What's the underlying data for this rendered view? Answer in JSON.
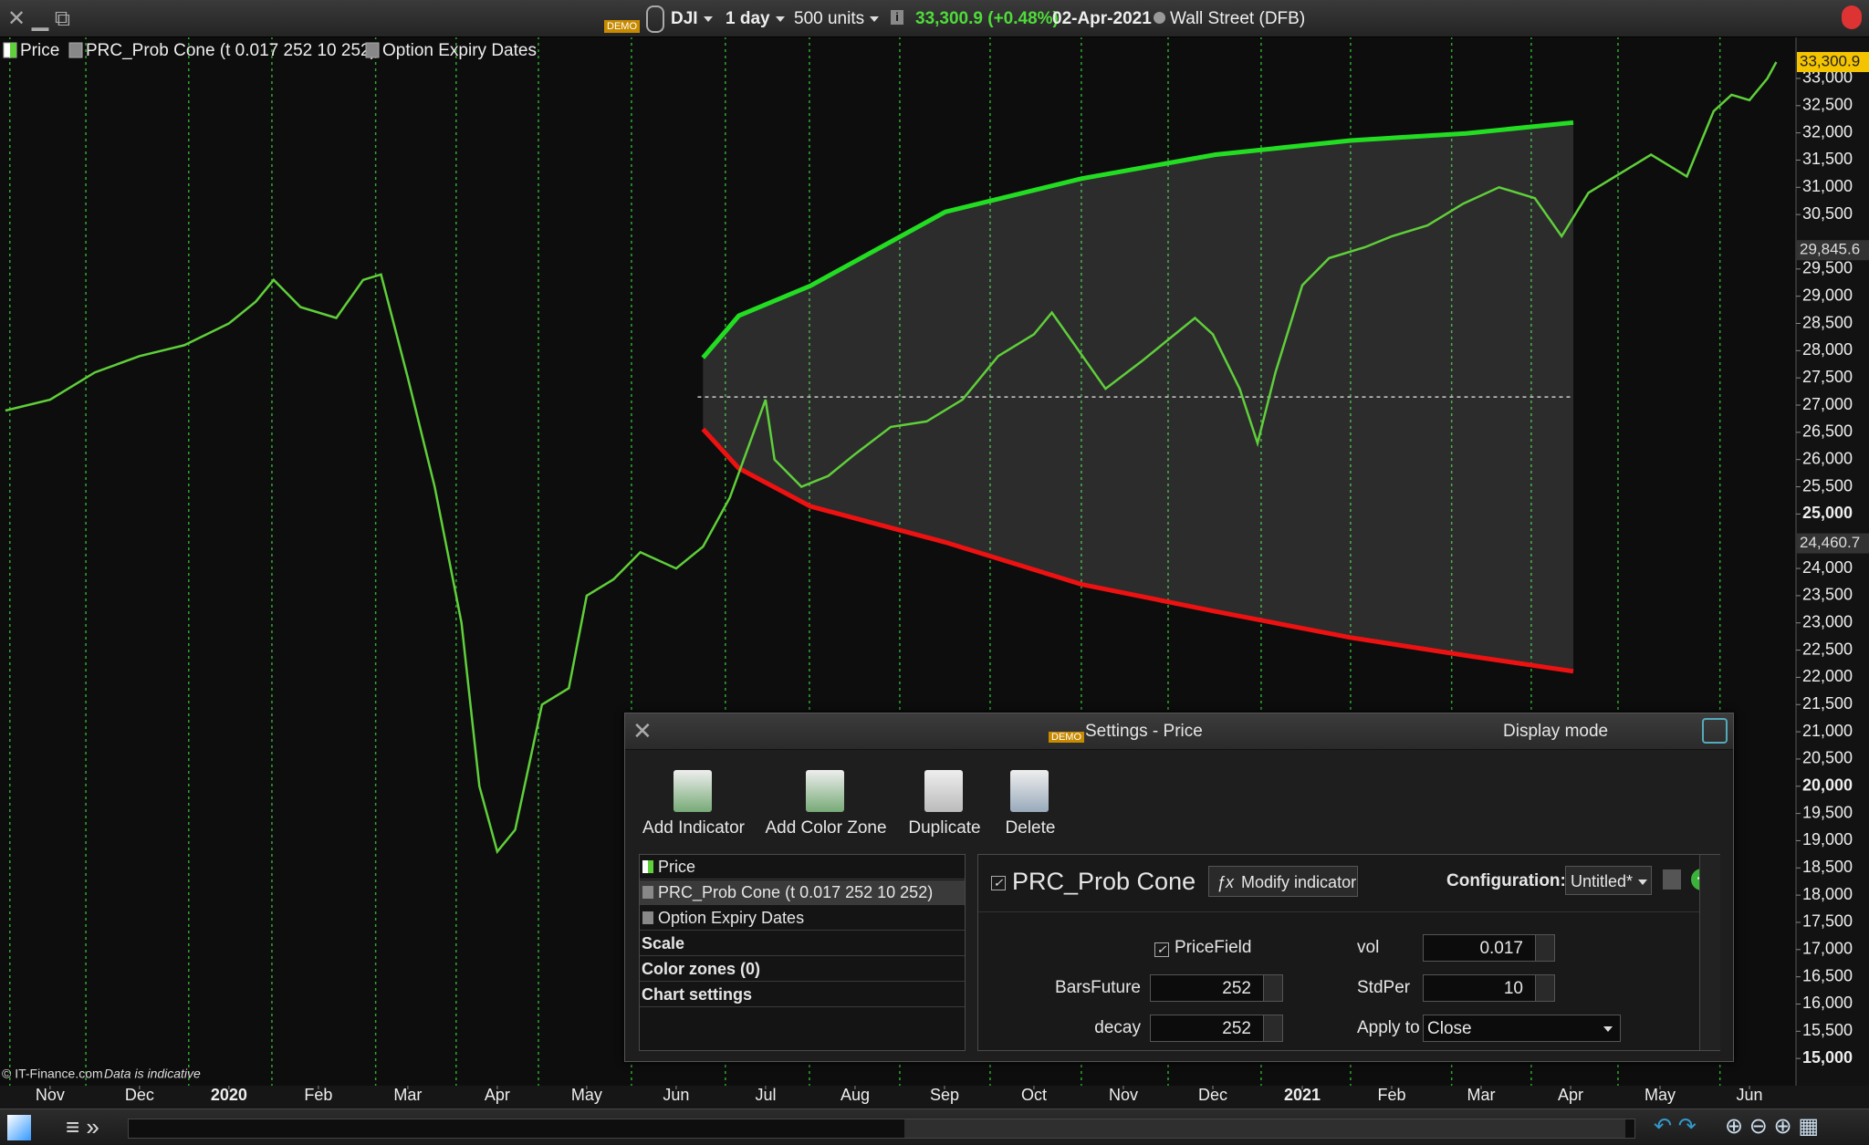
{
  "toolbar": {
    "badge": "DEMO",
    "symbol": "DJI",
    "period": "1 day",
    "units": "500 units",
    "last": "33,300.9",
    "change": "(+0.48%)",
    "date": "02-Apr-2021",
    "market": "Wall Street (DFB)"
  },
  "chart_data": {
    "type": "line",
    "xlim": [
      -0.56,
      19.52
    ],
    "xticks": [
      {
        "value": 0,
        "label": "Nov"
      },
      {
        "value": 1,
        "label": "Dec"
      },
      {
        "value": 2,
        "label": "2020"
      },
      {
        "value": 3,
        "label": "Feb"
      },
      {
        "value": 4,
        "label": "Mar"
      },
      {
        "value": 5,
        "label": "Apr"
      },
      {
        "value": 6,
        "label": "May"
      },
      {
        "value": 7,
        "label": "Jun"
      },
      {
        "value": 8,
        "label": "Jul"
      },
      {
        "value": 9,
        "label": "Aug"
      },
      {
        "value": 10,
        "label": "Sep"
      },
      {
        "value": 11,
        "label": "Oct"
      },
      {
        "value": 12,
        "label": "Nov"
      },
      {
        "value": 13,
        "label": "Dec"
      },
      {
        "value": 14,
        "label": "2021"
      },
      {
        "value": 15,
        "label": "Feb"
      },
      {
        "value": 16,
        "label": "Mar"
      },
      {
        "value": 17,
        "label": "Apr"
      },
      {
        "value": 18,
        "label": "May"
      },
      {
        "value": 19,
        "label": "Jun"
      }
    ],
    "ylim": [
      14500,
      33770
    ],
    "yticks": [
      {
        "value": 15000,
        "label": "15,000"
      },
      {
        "value": 15500,
        "label": "15,500"
      },
      {
        "value": 16000,
        "label": "16,000"
      },
      {
        "value": 16500,
        "label": "16,500"
      },
      {
        "value": 17000,
        "label": "17,000"
      },
      {
        "value": 17500,
        "label": "17,500"
      },
      {
        "value": 18000,
        "label": "18,000"
      },
      {
        "value": 18500,
        "label": "18,500"
      },
      {
        "value": 19000,
        "label": "19,000"
      },
      {
        "value": 19500,
        "label": "19,500"
      },
      {
        "value": 20000,
        "label": "20,000"
      },
      {
        "value": 20500,
        "label": "20,500"
      },
      {
        "value": 21000,
        "label": "21,000"
      },
      {
        "value": 21500,
        "label": "21,500"
      },
      {
        "value": 22000,
        "label": "22,000"
      },
      {
        "value": 22500,
        "label": "22,500"
      },
      {
        "value": 23000,
        "label": "23,000"
      },
      {
        "value": 23500,
        "label": "23,500"
      },
      {
        "value": 24000,
        "label": "24,000"
      },
      {
        "value": 25000,
        "label": "25,000"
      },
      {
        "value": 25500,
        "label": "25,500"
      },
      {
        "value": 26000,
        "label": "26,000"
      },
      {
        "value": 26500,
        "label": "26,500"
      },
      {
        "value": 27000,
        "label": "27,000"
      },
      {
        "value": 27500,
        "label": "27,500"
      },
      {
        "value": 28000,
        "label": "28,000"
      },
      {
        "value": 28500,
        "label": "28,500"
      },
      {
        "value": 29000,
        "label": "29,000"
      },
      {
        "value": 29500,
        "label": "29,500"
      },
      {
        "value": 30500,
        "label": "30,500"
      },
      {
        "value": 31000,
        "label": "31,000"
      },
      {
        "value": 31500,
        "label": "31,500"
      },
      {
        "value": 32000,
        "label": "32,000"
      },
      {
        "value": 32500,
        "label": "32,500"
      },
      {
        "value": 33000,
        "label": "33,000"
      }
    ],
    "price_labels": [
      {
        "value": 33300.9,
        "label": "33,300.9",
        "color": "#f5c400"
      },
      {
        "value": 29845.6,
        "label": "29,845.6",
        "color": "#333333"
      },
      {
        "value": 24460.7,
        "label": "24,460.7",
        "color": "#333333"
      }
    ],
    "series": [
      {
        "name": "Price",
        "color": "#5fcf3a",
        "x": [
          -0.5,
          0,
          0.5,
          1,
          1.5,
          2,
          2.3,
          2.5,
          2.8,
          3.2,
          3.5,
          3.7,
          4.0,
          4.3,
          4.6,
          4.8,
          5.0,
          5.2,
          5.5,
          5.8,
          6.0,
          6.3,
          6.6,
          7.0,
          7.3,
          7.6,
          7.8,
          8.0,
          8.1,
          8.4,
          8.7,
          9.0,
          9.4,
          9.8,
          10.2,
          10.6,
          11.0,
          11.2,
          11.5,
          11.8,
          12.2,
          12.5,
          12.8,
          13.0,
          13.3,
          13.5,
          13.7,
          14.0,
          14.3,
          14.7,
          15.0,
          15.4,
          15.8,
          16.2,
          16.6,
          16.9,
          17.2,
          17.6,
          17.9,
          18.1,
          18.3,
          18.6,
          18.8,
          19.0,
          19.2,
          19.3
        ],
        "values": [
          26900,
          27100,
          27600,
          27900,
          28100,
          28500,
          28900,
          29300,
          28800,
          28600,
          29300,
          29400,
          27500,
          25500,
          23000,
          20000,
          18800,
          19200,
          21500,
          21800,
          23500,
          23800,
          24300,
          24000,
          24400,
          25300,
          26200,
          27100,
          26000,
          25500,
          25700,
          26100,
          26600,
          26700,
          27100,
          27900,
          28300,
          28700,
          28000,
          27300,
          27800,
          28200,
          28600,
          28300,
          27300,
          26300,
          27600,
          29200,
          29700,
          29900,
          30100,
          30300,
          30700,
          31000,
          30800,
          30100,
          30900,
          31300,
          31600,
          31400,
          31200,
          32400,
          32700,
          32600,
          33000,
          33300
        ]
      },
      {
        "name": "PRC_Prob Cone (t 0.017 252 10 252)",
        "color": "#22dd22",
        "lower_color": "#ee1111",
        "x": [
          7.3,
          7.7,
          8.5,
          10.01,
          11.53,
          13.03,
          14.54,
          15.83,
          17.03
        ],
        "upper": [
          27870,
          28640,
          29190,
          30550,
          31160,
          31600,
          31860,
          31990,
          32190
        ],
        "lower": [
          26560,
          25840,
          25140,
          24480,
          23710,
          23210,
          22730,
          22400,
          22110
        ],
        "origin": 27150,
        "origin_x": [
          7.24,
          17.03
        ]
      },
      {
        "name": "Option Expiry Dates",
        "color": "#2fa82f",
        "x": [
          -0.45,
          0.4,
          1.55,
          2.48,
          3.64,
          4.54,
          5.46,
          6.5,
          7.55,
          8.49,
          9.5,
          10.51,
          11.53,
          12.5,
          13.54,
          14.54,
          15.67,
          16.56,
          17.53,
          18.67
        ]
      }
    ]
  },
  "footer": {
    "copyright": "© IT-Finance.com",
    "note": "Data is indicative"
  },
  "settings": {
    "badge": "DEMO",
    "title": "Settings - Price",
    "display_mode": "Display mode",
    "buttons": [
      "Add Indicator",
      "Add Color Zone",
      "Duplicate",
      "Delete"
    ],
    "list": [
      "Price",
      "PRC_Prob Cone (t 0.017 252 10 252)",
      "Option Expiry Dates",
      "Scale",
      "Color zones (0)",
      "Chart settings"
    ],
    "indicator": "PRC_Prob Cone",
    "modify": "Modify indicator",
    "configuration_label": "Configuration:",
    "configuration": "Untitled*",
    "params": {
      "pricefield": "PriceField",
      "vol_label": "vol",
      "vol": "0.017",
      "barsfuture_label": "BarsFuture",
      "barsfuture": "252",
      "stdper_label": "StdPer",
      "stdper": "10",
      "decay_label": "decay",
      "decay": "252",
      "applyto_label": "Apply to",
      "applyto": "Close"
    }
  }
}
